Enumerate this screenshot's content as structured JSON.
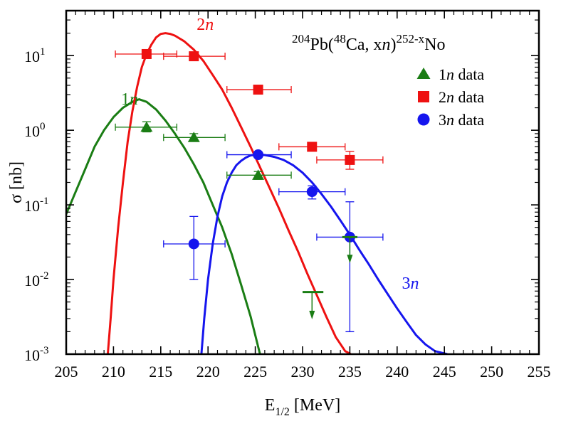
{
  "chart_data": {
    "type": "scatter",
    "title": "",
    "xlabel_main": "E",
    "xlabel_sub": "1/2",
    "xlabel_unit": " [MeV]",
    "ylabel": "σ [nb]",
    "xlim": [
      205,
      255
    ],
    "ylim": [
      0.001,
      40
    ],
    "y_scale": "log",
    "grid": false,
    "legend_position": "top-right",
    "x_ticks": [
      "205",
      "210",
      "215",
      "220",
      "225",
      "230",
      "235",
      "240",
      "245",
      "250",
      "255"
    ],
    "y_ticks": [
      {
        "base": "10",
        "exp": "1",
        "value": 10
      },
      {
        "base": "10",
        "exp": "0",
        "value": 1
      },
      {
        "base": "10",
        "exp": "-1",
        "value": 0.1
      },
      {
        "base": "10",
        "exp": "-2",
        "value": 0.01
      },
      {
        "base": "10",
        "exp": "-3",
        "value": 0.001
      }
    ],
    "reaction": {
      "m1": "204",
      "t1": "Pb(",
      "m2": "48",
      "t2": "Ca, x",
      "n": "n",
      "t3": ")",
      "m3": "252-x",
      "t4": "No"
    },
    "legend": [
      {
        "series": "1n",
        "num": "1",
        "ital": "n",
        "rest": " data"
      },
      {
        "series": "2n",
        "num": "2",
        "ital": "n",
        "rest": " data"
      },
      {
        "series": "3n",
        "num": "3",
        "ital": "n",
        "rest": " data"
      }
    ],
    "colors": {
      "1n": "#1a7d14",
      "2n": "#ee1111",
      "3n": "#1515ee"
    },
    "curves": [
      {
        "id": "1n",
        "label_num": "1",
        "label_ital": "n",
        "label_at": [
          210.8,
          2.2
        ],
        "points": [
          [
            205,
            0.075
          ],
          [
            206,
            0.15
          ],
          [
            207,
            0.3
          ],
          [
            208,
            0.6
          ],
          [
            209,
            1.0
          ],
          [
            210,
            1.5
          ],
          [
            211,
            2.0
          ],
          [
            212,
            2.4
          ],
          [
            212.7,
            2.6
          ],
          [
            213.5,
            2.4
          ],
          [
            214.5,
            1.9
          ],
          [
            215.5,
            1.35
          ],
          [
            216.5,
            0.9
          ],
          [
            217.5,
            0.58
          ],
          [
            218.5,
            0.35
          ],
          [
            219.5,
            0.2
          ],
          [
            220.5,
            0.1
          ],
          [
            221.5,
            0.05
          ],
          [
            222.5,
            0.022
          ],
          [
            223.5,
            0.0085
          ],
          [
            224.5,
            0.0032
          ],
          [
            225.5,
            0.001
          ]
        ]
      },
      {
        "id": "2n",
        "label_num": "2",
        "label_ital": "n",
        "label_at": [
          218.8,
          22
        ],
        "points": [
          [
            209.4,
            0.001
          ],
          [
            209.7,
            0.003
          ],
          [
            210,
            0.01
          ],
          [
            210.5,
            0.05
          ],
          [
            211,
            0.2
          ],
          [
            211.5,
            0.7
          ],
          [
            212,
            1.8
          ],
          [
            212.5,
            3.8
          ],
          [
            213,
            7
          ],
          [
            213.5,
            10.5
          ],
          [
            214,
            14
          ],
          [
            214.5,
            17.5
          ],
          [
            215,
            19.5
          ],
          [
            215.5,
            20
          ],
          [
            216,
            19.5
          ],
          [
            216.5,
            18.5
          ],
          [
            217.5,
            15.5
          ],
          [
            218.5,
            12
          ],
          [
            219.5,
            8.5
          ],
          [
            220.5,
            5.5
          ],
          [
            221.5,
            3.5
          ],
          [
            222.5,
            2.0
          ],
          [
            223.5,
            1.1
          ],
          [
            224.5,
            0.6
          ],
          [
            225.5,
            0.32
          ],
          [
            226.5,
            0.17
          ],
          [
            227.5,
            0.09
          ],
          [
            228.5,
            0.046
          ],
          [
            229.5,
            0.024
          ],
          [
            230.5,
            0.012
          ],
          [
            231.5,
            0.0062
          ],
          [
            232.5,
            0.0032
          ],
          [
            233.5,
            0.0017
          ],
          [
            234.5,
            0.0011
          ],
          [
            235.1,
            0.001
          ]
        ]
      },
      {
        "id": "3n",
        "label_num": "3",
        "label_ital": "n",
        "label_at": [
          240.5,
          0.0075
        ],
        "points": [
          [
            219.3,
            0.001
          ],
          [
            219.6,
            0.003
          ],
          [
            220,
            0.01
          ],
          [
            220.5,
            0.03
          ],
          [
            221,
            0.07
          ],
          [
            221.5,
            0.13
          ],
          [
            222,
            0.2
          ],
          [
            222.5,
            0.27
          ],
          [
            223,
            0.34
          ],
          [
            223.5,
            0.39
          ],
          [
            224,
            0.43
          ],
          [
            224.5,
            0.46
          ],
          [
            225,
            0.47
          ],
          [
            225.5,
            0.47
          ],
          [
            226,
            0.465
          ],
          [
            227,
            0.44
          ],
          [
            228,
            0.4
          ],
          [
            229,
            0.34
          ],
          [
            230,
            0.27
          ],
          [
            231,
            0.2
          ],
          [
            232,
            0.14
          ],
          [
            233,
            0.095
          ],
          [
            234,
            0.062
          ],
          [
            235,
            0.04
          ],
          [
            236,
            0.025
          ],
          [
            237,
            0.016
          ],
          [
            238,
            0.01
          ],
          [
            239,
            0.0064
          ],
          [
            240,
            0.0041
          ],
          [
            241,
            0.0027
          ],
          [
            242,
            0.0018
          ],
          [
            243,
            0.00135
          ],
          [
            244,
            0.0011
          ],
          [
            245.3,
            0.001
          ]
        ]
      }
    ],
    "series": [
      {
        "id": "1n",
        "marker": "triangle",
        "points": [
          {
            "x": 213.5,
            "y": 1.1,
            "xerr": [
              210.2,
              216.7
            ],
            "yerr": [
              0.95,
              1.3
            ]
          },
          {
            "x": 218.5,
            "y": 0.8,
            "xerr": [
              215.3,
              221.8
            ],
            "yerr": [
              0.72,
              0.9
            ]
          },
          {
            "x": 225.3,
            "y": 0.25,
            "xerr": [
              222.0,
              228.8
            ],
            "yerr": [
              0.22,
              0.28
            ]
          }
        ]
      },
      {
        "id": "2n",
        "marker": "square",
        "points": [
          {
            "x": 213.5,
            "y": 10.5,
            "xerr": [
              210.2,
              216.7
            ],
            "yerr": [
              9.6,
              11.5
            ]
          },
          {
            "x": 218.5,
            "y": 9.8,
            "xerr": [
              215.3,
              221.8
            ],
            "yerr": [
              9.0,
              10.6
            ]
          },
          {
            "x": 225.3,
            "y": 3.5,
            "xerr": [
              222.0,
              228.8
            ],
            "yerr": [
              3.2,
              3.85
            ]
          },
          {
            "x": 231.0,
            "y": 0.6,
            "xerr": [
              227.5,
              234.5
            ],
            "yerr": [
              0.54,
              0.68
            ]
          },
          {
            "x": 235.0,
            "y": 0.4,
            "xerr": [
              231.5,
              238.5
            ],
            "yerr": [
              0.3,
              0.52
            ]
          }
        ]
      },
      {
        "id": "3n",
        "marker": "circle",
        "points": [
          {
            "x": 218.5,
            "y": 0.03,
            "xerr": [
              215.3,
              221.8
            ],
            "yerr": [
              0.01,
              0.07
            ]
          },
          {
            "x": 225.3,
            "y": 0.47,
            "xerr": [
              222.0,
              228.8
            ],
            "yerr": [
              0.43,
              0.51
            ]
          },
          {
            "x": 231.0,
            "y": 0.15,
            "xerr": [
              227.5,
              234.5
            ],
            "yerr": [
              0.12,
              0.18
            ]
          },
          {
            "x": 235.0,
            "y": 0.037,
            "xerr": [
              231.5,
              238.5
            ],
            "yerr": [
              0.002,
              0.11
            ]
          }
        ]
      }
    ],
    "upper_limits": [
      {
        "series": "1n",
        "x": 231.0,
        "y": 0.0068,
        "width": [
          230.0,
          232.2
        ],
        "arrow_to": 0.0032
      },
      {
        "series": "1n",
        "x": 235.0,
        "y": 0.037,
        "width": [
          234.2,
          235.8
        ],
        "arrow_to": 0.018
      }
    ]
  }
}
